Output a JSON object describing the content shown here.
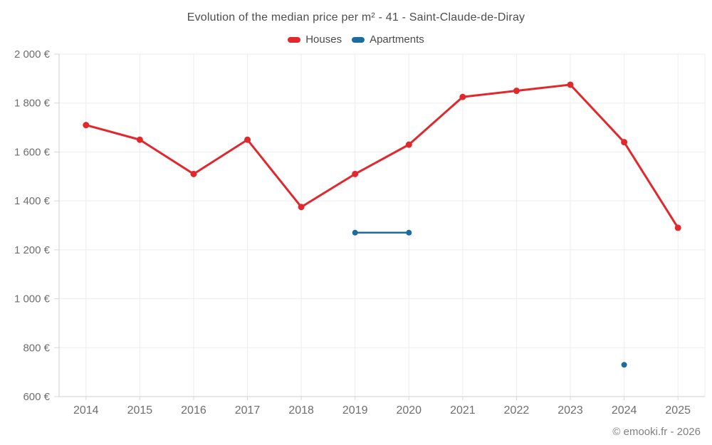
{
  "title": "Evolution of the median price per m² - 41 - Saint-Claude-de-Diray",
  "watermark": "© emooki.fr - 2026",
  "colors": {
    "houses": "#e0282d",
    "apartments": "#1a6d9e",
    "grid": "#ededed",
    "axis": "#cfcfcf",
    "tick": "#d9d9d9",
    "tick_label": "#6e6e6e"
  },
  "legend": [
    {
      "label": "Houses",
      "color": "#e0282d"
    },
    {
      "label": "Apartments",
      "color": "#1a6d9e"
    }
  ],
  "chart_data": {
    "type": "line",
    "title": "Evolution of the median price per m² - 41 - Saint-Claude-de-Diray",
    "x": [
      2014,
      2015,
      2016,
      2017,
      2018,
      2019,
      2020,
      2021,
      2022,
      2023,
      2024,
      2025
    ],
    "series": [
      {
        "name": "Houses",
        "color": "#e0282d",
        "line_width": 3,
        "marker_radius": 4.5,
        "values": [
          1710,
          1650,
          1510,
          1650,
          1375,
          1510,
          1630,
          1825,
          1850,
          1875,
          1640,
          1290
        ]
      },
      {
        "name": "Apartments",
        "color": "#1a6d9e",
        "line_width": 2.5,
        "marker_radius": 4,
        "values": [
          null,
          null,
          null,
          null,
          null,
          1270,
          1270,
          null,
          null,
          null,
          730,
          null
        ]
      }
    ],
    "ylim": [
      600,
      2000
    ],
    "ytick_step": 200,
    "yticklabels": [
      "600 €",
      "800 €",
      "1 000 €",
      "1 200 €",
      "1 400 €",
      "1 600 €",
      "1 800 €",
      "2 000 €"
    ],
    "xticklabels": [
      "2014",
      "2015",
      "2016",
      "2017",
      "2018",
      "2019",
      "2020",
      "2021",
      "2022",
      "2023",
      "2024",
      "2025"
    ],
    "grid": true,
    "legend_position": "top"
  }
}
